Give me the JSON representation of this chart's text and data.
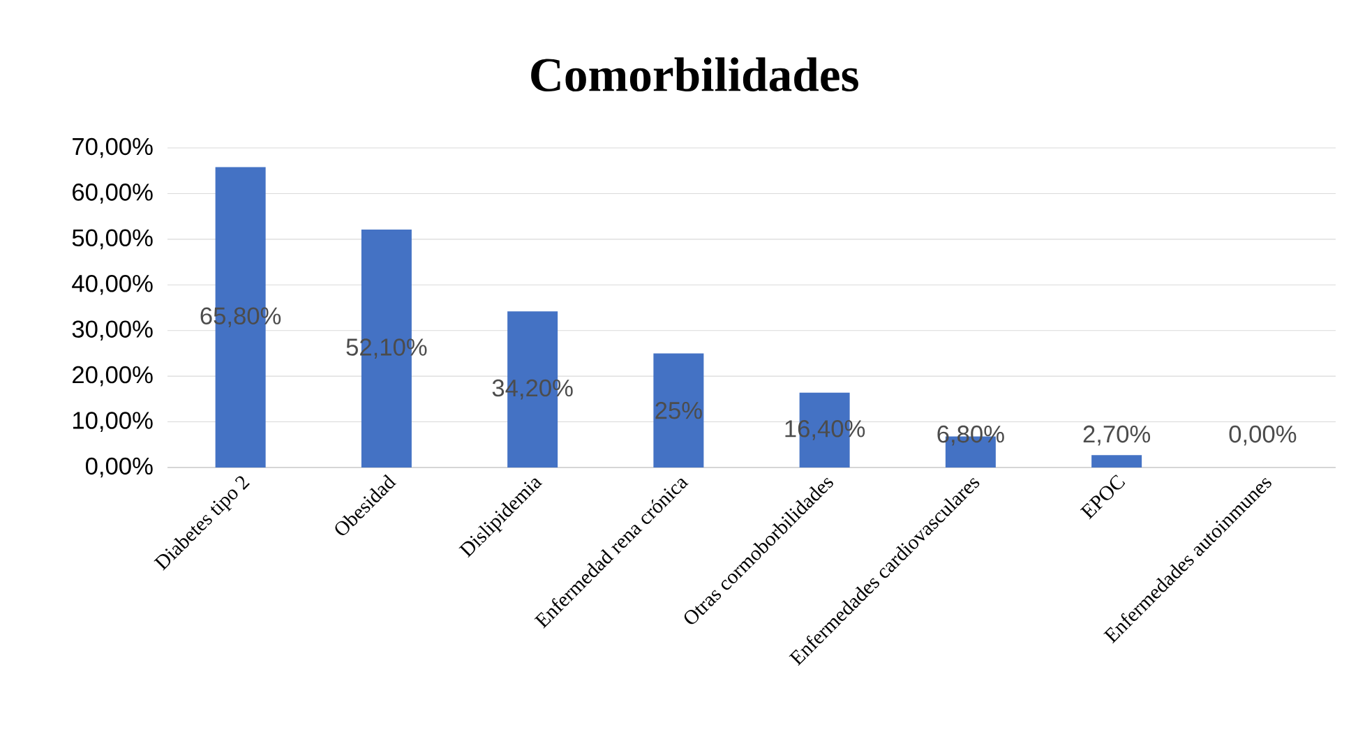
{
  "chart_data": {
    "type": "bar",
    "title": "Comorbilidades",
    "categories": [
      "Diabetes tipo 2",
      "Obesidad",
      "Dislipidemia",
      "Enfermedad rena crónica",
      "Otras cormoborbilidades",
      "Enfermedades cardiovasculares",
      "EPOC",
      "Enfermedades autoinmunes"
    ],
    "values": [
      65.8,
      52.1,
      34.2,
      25,
      16.4,
      6.8,
      2.7,
      0
    ],
    "value_labels": [
      "65,80%",
      "52,10%",
      "34,20%",
      "25%",
      "16,40%",
      "6,80%",
      "2,70%",
      "0,00%"
    ],
    "color": "#4472c4",
    "ylim": [
      0,
      70
    ],
    "yticks": [
      {
        "value": 0,
        "label": "0,00%"
      },
      {
        "value": 10,
        "label": "10,00%"
      },
      {
        "value": 20,
        "label": "20,00%"
      },
      {
        "value": 30,
        "label": "30,00%"
      },
      {
        "value": 40,
        "label": "40,00%"
      },
      {
        "value": 50,
        "label": "50,00%"
      },
      {
        "value": 60,
        "label": "60,00%"
      },
      {
        "value": 70,
        "label": "70,00%"
      }
    ],
    "grid": "y"
  }
}
